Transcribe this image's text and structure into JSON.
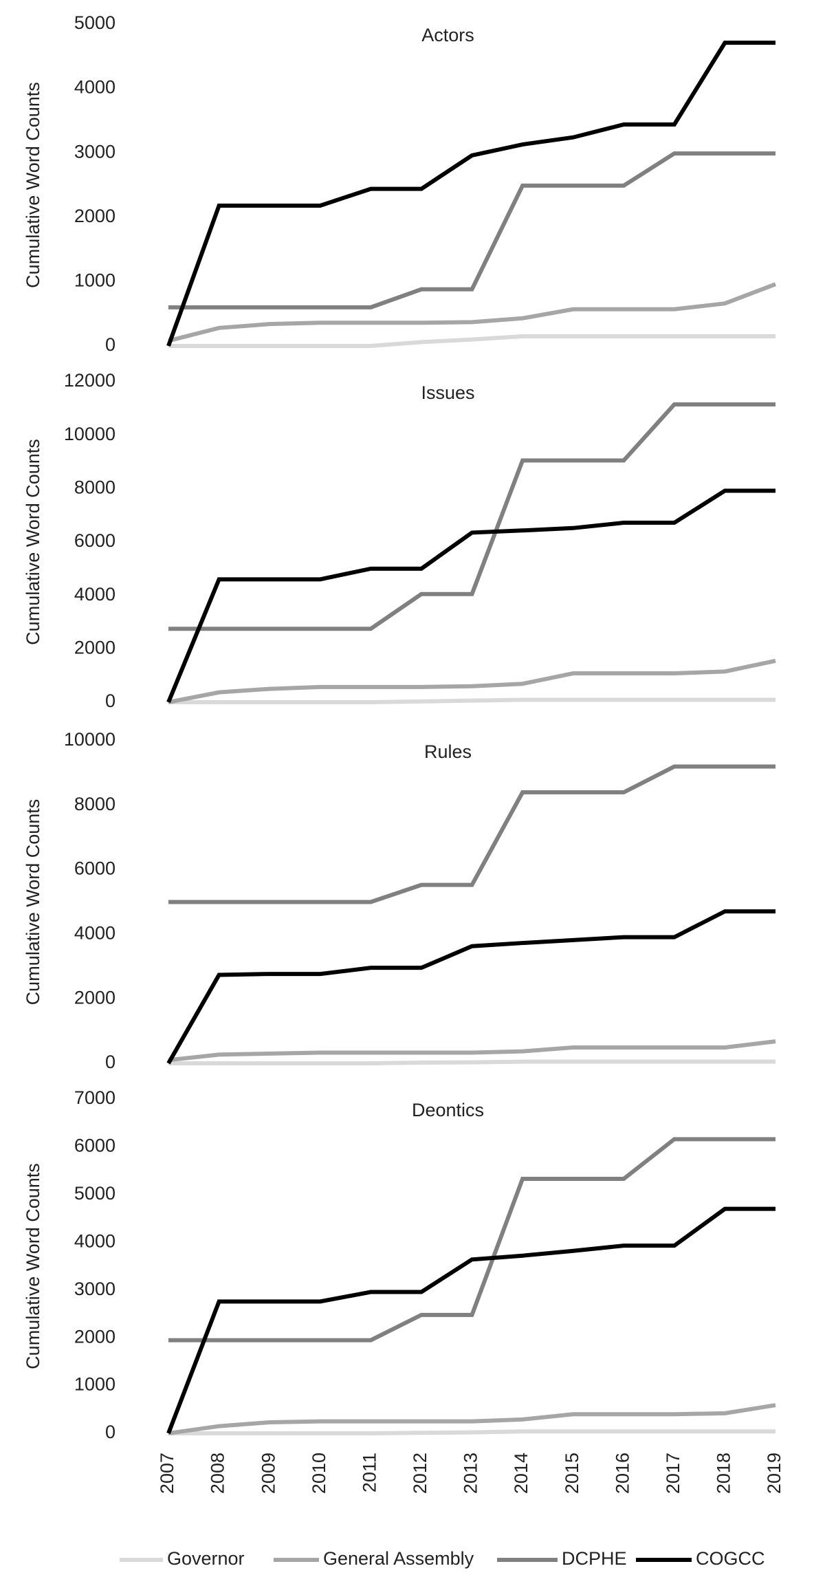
{
  "chart_data": [
    {
      "type": "line",
      "title": "Actors",
      "ylabel": "Cumulative Word Counts",
      "ylim": [
        0,
        5000
      ],
      "yticks": [
        0,
        1000,
        2000,
        3000,
        4000,
        5000
      ],
      "series": [
        {
          "name": "Governor",
          "color": "#d9d9d9",
          "values": [
            0,
            0,
            0,
            0,
            0,
            60,
            100,
            150,
            150,
            150,
            150,
            150,
            150
          ]
        },
        {
          "name": "General Assembly",
          "color": "#a6a6a6",
          "values": [
            80,
            280,
            340,
            360,
            360,
            360,
            370,
            430,
            570,
            570,
            570,
            660,
            960
          ]
        },
        {
          "name": "DCPHE",
          "color": "#808080",
          "values": [
            600,
            600,
            600,
            600,
            600,
            880,
            880,
            2490,
            2490,
            2490,
            2990,
            2990,
            2990
          ]
        },
        {
          "name": "COGCC",
          "color": "#000000",
          "values": [
            0,
            2180,
            2180,
            2180,
            2440,
            2440,
            2960,
            3130,
            3240,
            3440,
            3440,
            4710,
            4710
          ]
        }
      ]
    },
    {
      "type": "line",
      "title": "Issues",
      "ylabel": "Cumulative Word Counts",
      "ylim": [
        0,
        12000
      ],
      "yticks": [
        0,
        2000,
        4000,
        6000,
        8000,
        10000,
        12000
      ],
      "series": [
        {
          "name": "Governor",
          "color": "#d9d9d9",
          "values": [
            0,
            0,
            0,
            0,
            0,
            30,
            60,
            90,
            90,
            90,
            90,
            90,
            90
          ]
        },
        {
          "name": "General Assembly",
          "color": "#a6a6a6",
          "values": [
            0,
            370,
            500,
            570,
            570,
            570,
            600,
            690,
            1080,
            1080,
            1080,
            1150,
            1550
          ]
        },
        {
          "name": "DCPHE",
          "color": "#808080",
          "values": [
            2750,
            2750,
            2750,
            2750,
            2750,
            4050,
            4050,
            9050,
            9050,
            9050,
            11150,
            11150,
            11150
          ]
        },
        {
          "name": "COGCC",
          "color": "#000000",
          "values": [
            0,
            4600,
            4600,
            4600,
            5000,
            5000,
            6350,
            6430,
            6520,
            6720,
            6720,
            7920,
            7920
          ]
        }
      ]
    },
    {
      "type": "line",
      "title": "Rules",
      "ylabel": "Cumulative Word Counts",
      "ylim": [
        0,
        10000
      ],
      "yticks": [
        0,
        2000,
        4000,
        6000,
        8000,
        10000
      ],
      "series": [
        {
          "name": "Governor",
          "color": "#d9d9d9",
          "values": [
            0,
            0,
            0,
            0,
            0,
            20,
            30,
            50,
            50,
            50,
            50,
            50,
            50
          ]
        },
        {
          "name": "General Assembly",
          "color": "#a6a6a6",
          "values": [
            100,
            270,
            300,
            330,
            330,
            330,
            330,
            370,
            490,
            490,
            490,
            490,
            680
          ]
        },
        {
          "name": "DCPHE",
          "color": "#808080",
          "values": [
            5000,
            5000,
            5000,
            5000,
            5000,
            5530,
            5530,
            8400,
            8400,
            8400,
            9200,
            9200,
            9200
          ]
        },
        {
          "name": "COGCC",
          "color": "#000000",
          "values": [
            0,
            2740,
            2770,
            2770,
            2960,
            2960,
            3630,
            3730,
            3820,
            3910,
            3910,
            4710,
            4710
          ]
        }
      ]
    },
    {
      "type": "line",
      "title": "Deontics",
      "ylabel": "Cumulative Word Counts",
      "ylim": [
        0,
        7000
      ],
      "yticks": [
        0,
        1000,
        2000,
        3000,
        4000,
        5000,
        6000,
        7000
      ],
      "categories": [
        "2007",
        "2008",
        "2009",
        "2010",
        "2011",
        "2012",
        "2013",
        "2014",
        "2015",
        "2016",
        "2017",
        "2018",
        "2019"
      ],
      "series": [
        {
          "name": "Governor",
          "color": "#d9d9d9",
          "values": [
            0,
            0,
            0,
            0,
            0,
            10,
            20,
            40,
            40,
            40,
            40,
            40,
            40
          ]
        },
        {
          "name": "General Assembly",
          "color": "#a6a6a6",
          "values": [
            0,
            150,
            230,
            250,
            250,
            250,
            250,
            290,
            400,
            400,
            400,
            420,
            590
          ]
        },
        {
          "name": "DCPHE",
          "color": "#808080",
          "values": [
            1950,
            1950,
            1950,
            1950,
            1950,
            2480,
            2480,
            5330,
            5330,
            5330,
            6160,
            6160,
            6160
          ]
        },
        {
          "name": "COGCC",
          "color": "#000000",
          "values": [
            0,
            2760,
            2760,
            2760,
            2960,
            2960,
            3640,
            3720,
            3820,
            3930,
            3930,
            4700,
            4700
          ]
        }
      ]
    }
  ]
}
